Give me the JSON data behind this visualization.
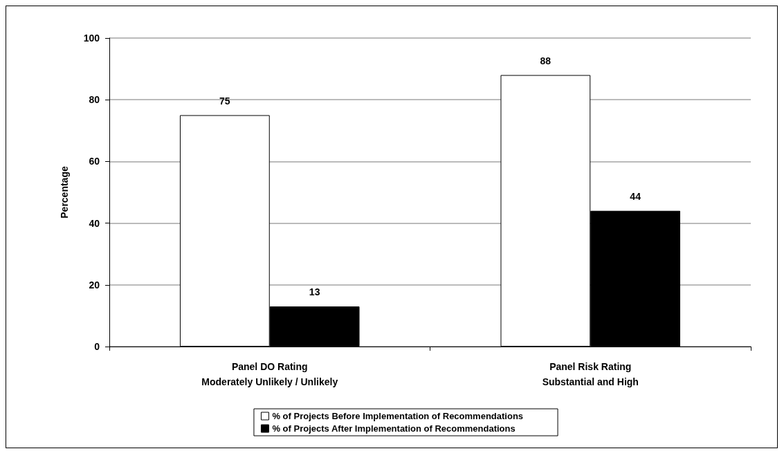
{
  "chart_data": {
    "type": "bar",
    "ylabel": "Percentage",
    "categories": [
      "Panel DO Rating\nModerately Unlikely / Unlikely",
      "Panel Risk Rating\nSubstantial and High"
    ],
    "series": [
      {
        "name": "% of Projects Before Implementation of Recommendations",
        "color": "#ffffff",
        "values": [
          75,
          88
        ]
      },
      {
        "name": "% of Projects After Implementation of Recommendations",
        "color": "#000000",
        "values": [
          13,
          44
        ]
      }
    ],
    "ylim": [
      0,
      100
    ],
    "yticks": [
      0,
      20,
      40,
      60,
      80,
      100
    ],
    "grid": "y",
    "legend": "bottom",
    "data_labels": true
  }
}
